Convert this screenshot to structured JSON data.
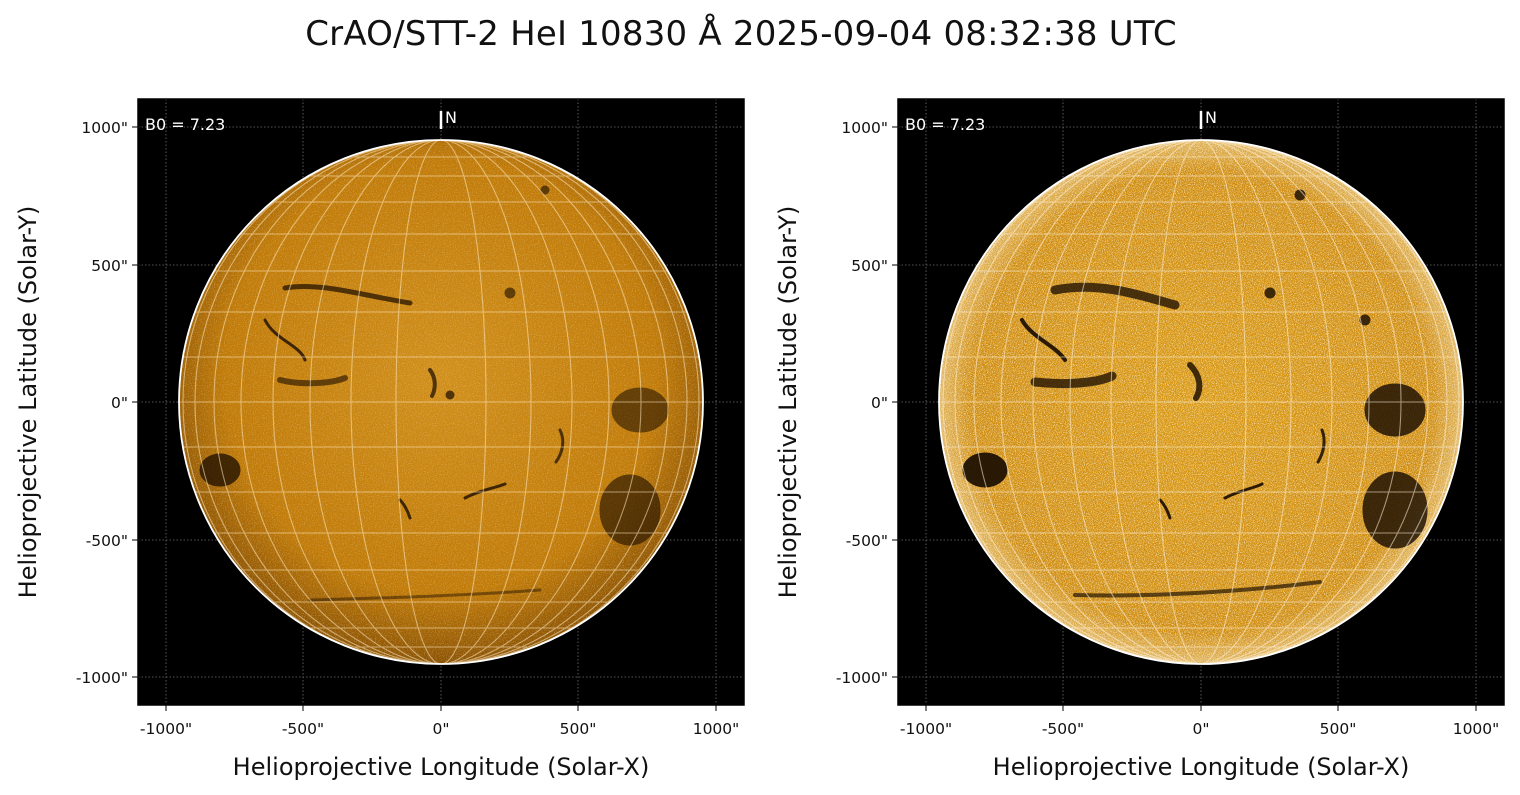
{
  "figure": {
    "title": "CrAO/STT-2 HeI 10830 Å 2025-09-04 08:32:38 UTC"
  },
  "colors": {
    "background": "#000000",
    "disk_base": "#c07a08",
    "disk_light": "#f2c872",
    "limb": "#ffffff",
    "feature": "#1a0c00"
  },
  "panels": [
    {
      "id": "left",
      "ylabel": "Helioprojective Latitude (Solar-Y)",
      "xlabel": "Helioprojective Longitude (Solar-X)",
      "b0_label": "B0 = 7.23",
      "north_label": "N",
      "xticks": [
        "-1000\"",
        "-500\"",
        "0\"",
        "500\"",
        "1000\""
      ],
      "yticks": [
        "1000\"",
        "500\"",
        "0\"",
        "-500\"",
        "-1000\""
      ],
      "enhanced": false
    },
    {
      "id": "right",
      "ylabel": "Helioprojective Latitude (Solar-Y)",
      "xlabel": "Helioprojective Longitude (Solar-X)",
      "b0_label": "B0 = 7.23",
      "north_label": "N",
      "xticks": [
        "-1000\"",
        "-500\"",
        "0\"",
        "500\"",
        "1000\""
      ],
      "yticks": [
        "1000\"",
        "500\"",
        "0\"",
        "-500\"",
        "-1000\""
      ],
      "enhanced": true
    }
  ]
}
